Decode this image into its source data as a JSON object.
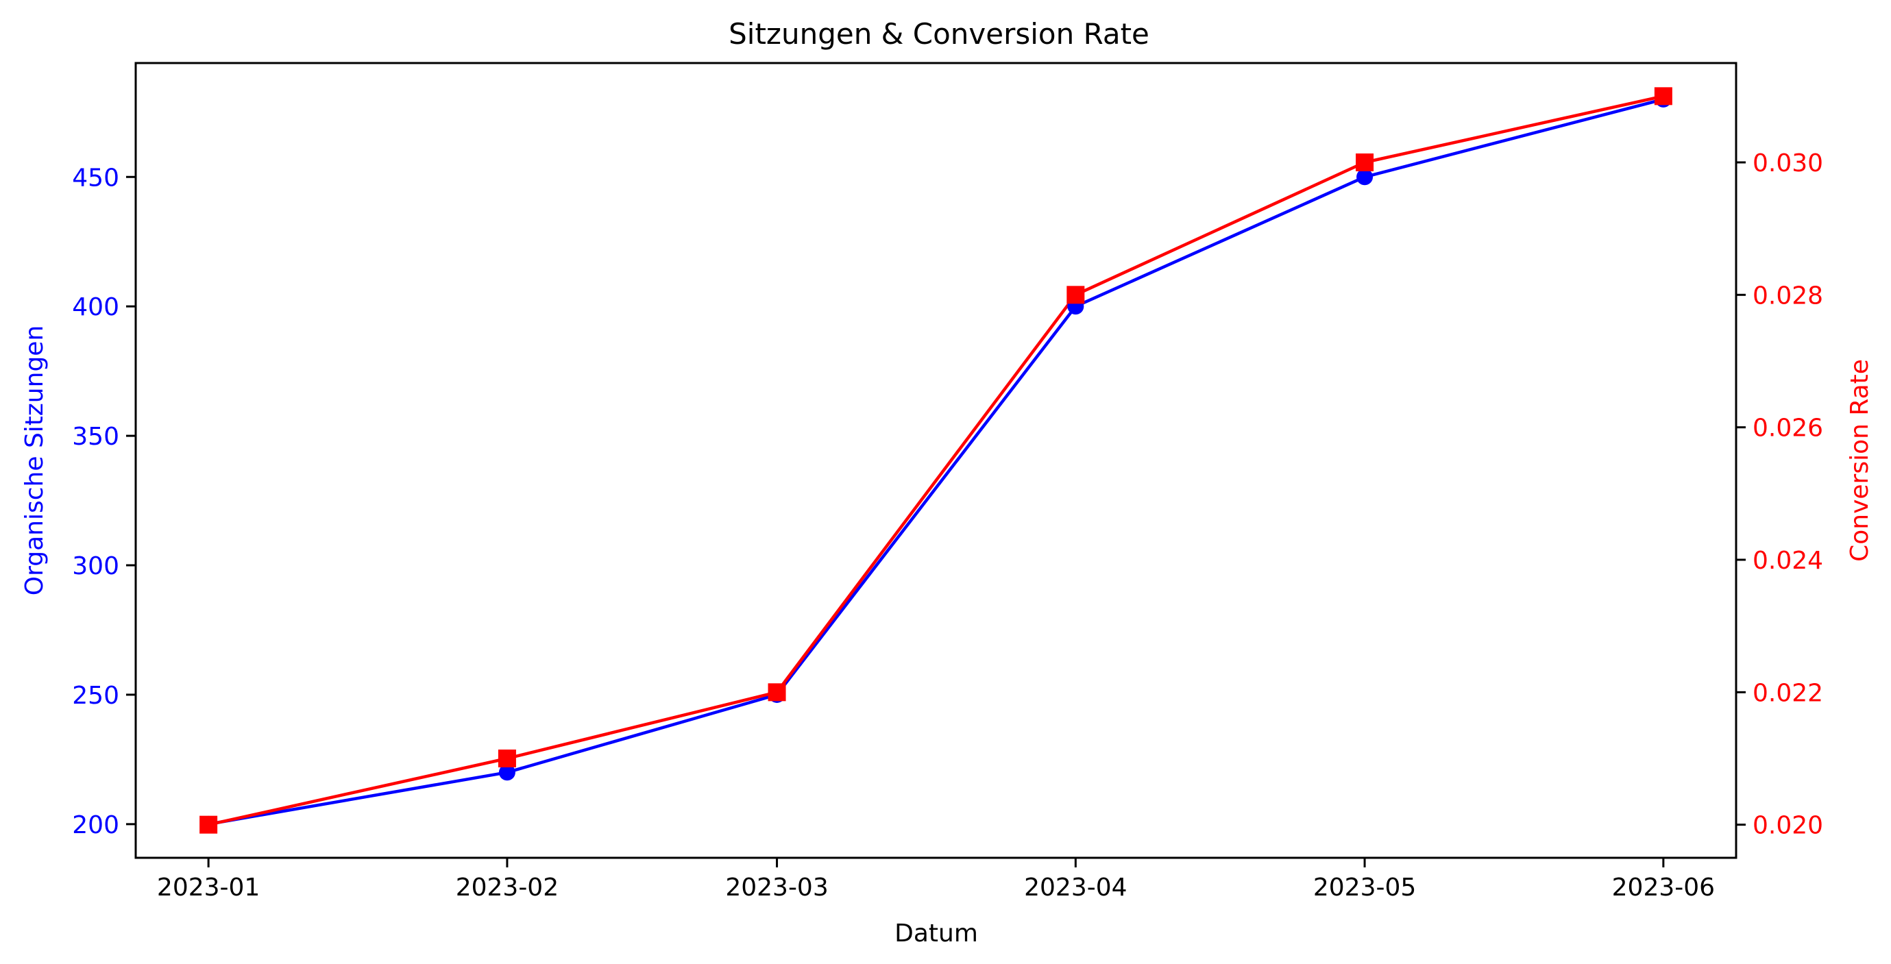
{
  "chart_data": {
    "type": "line",
    "title": "Sitzungen & Conversion Rate",
    "xlabel": "Datum",
    "x": [
      "2023-01-01",
      "2023-02-01",
      "2023-03-01",
      "2023-04-01",
      "2023-05-01",
      "2023-06-01"
    ],
    "x_tick_labels": [
      "2023-01",
      "2023-02",
      "2023-03",
      "2023-04",
      "2023-05",
      "2023-06"
    ],
    "grid": false,
    "y_left": {
      "label": "Organische Sitzungen",
      "color": "#0000ff",
      "ticks": [
        200,
        250,
        300,
        350,
        400,
        450
      ],
      "tick_labels": [
        "200",
        "250",
        "300",
        "350",
        "400",
        "450"
      ],
      "ylim": [
        187,
        494
      ]
    },
    "y_right": {
      "label": "Conversion Rate",
      "color": "#ff0000",
      "ticks": [
        0.02,
        0.022,
        0.024,
        0.026,
        0.028,
        0.03
      ],
      "tick_labels": [
        "0.020",
        "0.022",
        "0.024",
        "0.026",
        "0.028",
        "0.030"
      ],
      "ylim": [
        0.0195,
        0.0315
      ]
    },
    "series": [
      {
        "axis": "left",
        "color": "#0000ff",
        "marker": "circle",
        "values": [
          200,
          220,
          250,
          400,
          450,
          480
        ]
      },
      {
        "axis": "right",
        "color": "#ff0000",
        "marker": "square",
        "values": [
          0.02,
          0.021,
          0.022,
          0.028,
          0.03,
          0.031
        ]
      }
    ]
  }
}
